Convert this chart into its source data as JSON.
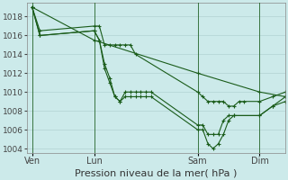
{
  "background_color": "#cceaea",
  "grid_color": "#aacccc",
  "line_color": "#1a5c1a",
  "xlabel": "Pression niveau de la mer( hPa )",
  "xlabel_fontsize": 8,
  "ylim": [
    1003.5,
    1019.5
  ],
  "yticks": [
    1004,
    1006,
    1008,
    1010,
    1012,
    1014,
    1016,
    1018
  ],
  "ytick_fontsize": 6.5,
  "xtick_labels": [
    "Ven",
    "Lun",
    "Sam",
    "Dim"
  ],
  "xtick_positions": [
    2,
    26,
    66,
    90
  ],
  "xtick_fontsize": 7,
  "vline_positions": [
    2,
    26,
    66,
    90
  ],
  "xlim": [
    0,
    100
  ],
  "series": [
    {
      "x": [
        2,
        26,
        66,
        90,
        100
      ],
      "y": [
        1019.0,
        1015.5,
        1012.0,
        1010.0,
        1009.5
      ]
    },
    {
      "x": [
        2,
        5,
        26,
        28,
        30,
        32,
        34,
        36,
        38,
        40,
        42,
        66,
        68,
        70,
        72,
        74,
        76,
        78,
        80,
        82,
        84,
        90,
        95,
        100
      ],
      "y": [
        1019.0,
        1016.5,
        1017.0,
        1017.0,
        1015.0,
        1015.0,
        1015.0,
        1015.0,
        1015.0,
        1015.0,
        1014.0,
        1010.0,
        1009.5,
        1009.0,
        1009.0,
        1009.0,
        1009.0,
        1008.5,
        1008.5,
        1009.0,
        1009.0,
        1009.0,
        1009.5,
        1010.0
      ]
    },
    {
      "x": [
        2,
        5,
        26,
        28,
        30,
        32,
        34,
        36,
        38,
        40,
        42,
        44,
        46,
        48,
        66,
        68,
        70,
        72,
        74,
        76,
        78,
        80,
        90,
        95,
        100
      ],
      "y": [
        1019.0,
        1016.0,
        1016.5,
        1015.5,
        1013.0,
        1011.5,
        1009.5,
        1009.0,
        1010.0,
        1010.0,
        1010.0,
        1010.0,
        1010.0,
        1010.0,
        1006.5,
        1006.5,
        1005.5,
        1005.5,
        1005.5,
        1007.0,
        1007.5,
        1007.5,
        1007.5,
        1008.5,
        1009.5
      ]
    },
    {
      "x": [
        2,
        5,
        26,
        28,
        30,
        32,
        34,
        36,
        38,
        40,
        42,
        44,
        46,
        48,
        66,
        68,
        70,
        72,
        74,
        76,
        78,
        80,
        90,
        95,
        100
      ],
      "y": [
        1019.0,
        1016.0,
        1016.5,
        1015.5,
        1012.5,
        1011.0,
        1009.5,
        1009.0,
        1009.5,
        1009.5,
        1009.5,
        1009.5,
        1009.5,
        1009.5,
        1006.0,
        1006.0,
        1004.5,
        1004.0,
        1004.5,
        1005.5,
        1007.0,
        1007.5,
        1007.5,
        1008.5,
        1009.0
      ]
    }
  ]
}
